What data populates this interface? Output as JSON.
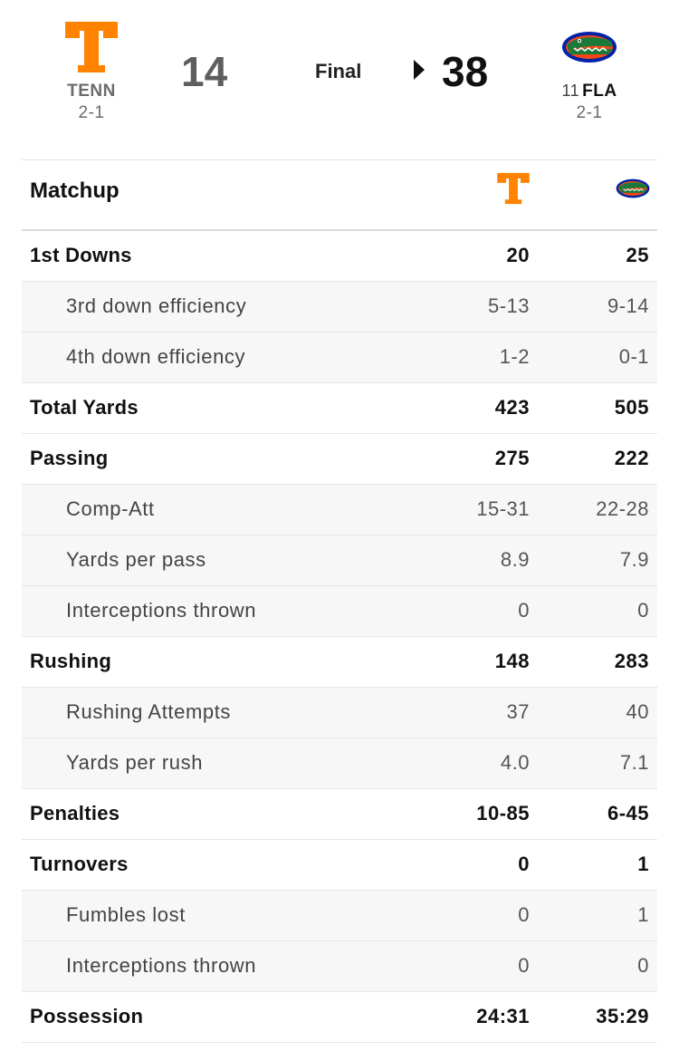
{
  "game": {
    "status": "Final",
    "away": {
      "abbr": "TENN",
      "rank": "",
      "record": "2-1",
      "score": "14",
      "color": "#FF8200",
      "logo_icon": "tennessee-t-logo"
    },
    "home": {
      "abbr": "FLA",
      "rank": "11",
      "record": "2-1",
      "score": "38",
      "color": "#0021A5",
      "logo_icon": "florida-gator-logo",
      "winner": true
    }
  },
  "matchup": {
    "title": "Matchup",
    "rows": [
      {
        "label": "1st Downs",
        "away": "20",
        "home": "25",
        "sub": false
      },
      {
        "label": "3rd down efficiency",
        "away": "5-13",
        "home": "9-14",
        "sub": true
      },
      {
        "label": "4th down efficiency",
        "away": "1-2",
        "home": "0-1",
        "sub": true
      },
      {
        "label": "Total Yards",
        "away": "423",
        "home": "505",
        "sub": false
      },
      {
        "label": "Passing",
        "away": "275",
        "home": "222",
        "sub": false
      },
      {
        "label": "Comp-Att",
        "away": "15-31",
        "home": "22-28",
        "sub": true
      },
      {
        "label": "Yards per pass",
        "away": "8.9",
        "home": "7.9",
        "sub": true
      },
      {
        "label": "Interceptions thrown",
        "away": "0",
        "home": "0",
        "sub": true
      },
      {
        "label": "Rushing",
        "away": "148",
        "home": "283",
        "sub": false
      },
      {
        "label": "Rushing Attempts",
        "away": "37",
        "home": "40",
        "sub": true
      },
      {
        "label": "Yards per rush",
        "away": "4.0",
        "home": "7.1",
        "sub": true
      },
      {
        "label": "Penalties",
        "away": "10-85",
        "home": "6-45",
        "sub": false
      },
      {
        "label": "Turnovers",
        "away": "0",
        "home": "1",
        "sub": false
      },
      {
        "label": "Fumbles lost",
        "away": "0",
        "home": "1",
        "sub": true
      },
      {
        "label": "Interceptions thrown",
        "away": "0",
        "home": "0",
        "sub": true
      },
      {
        "label": "Possession",
        "away": "24:31",
        "home": "35:29",
        "sub": false
      }
    ]
  }
}
